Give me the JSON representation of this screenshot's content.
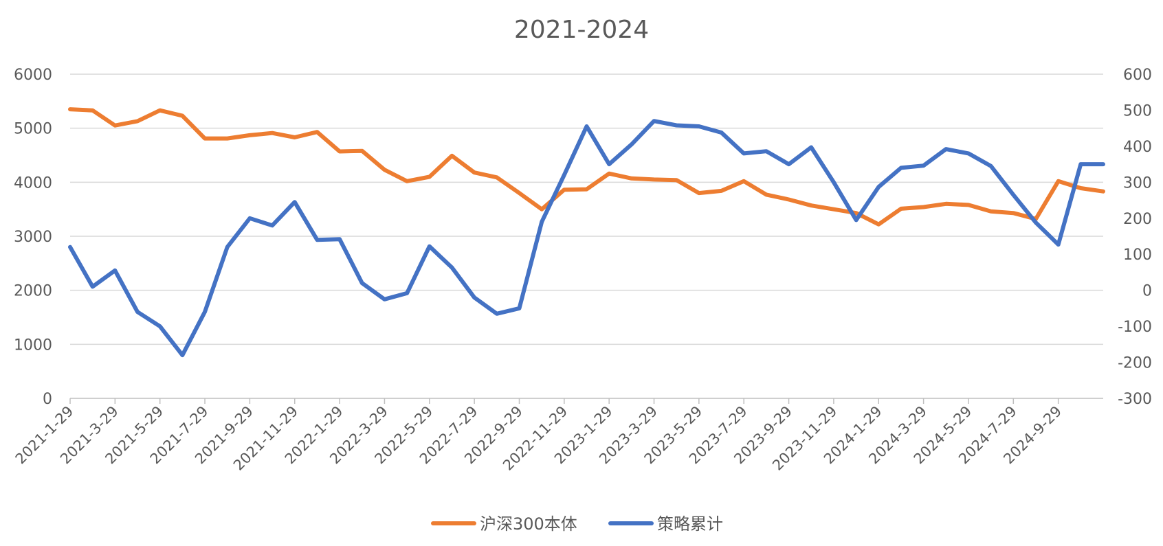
{
  "chart_data": {
    "type": "line",
    "title": "2021-2024",
    "x": [
      "2021-1-29",
      "2021-2-28",
      "2021-3-29",
      "2021-4-29",
      "2021-5-29",
      "2021-6-29",
      "2021-7-29",
      "2021-8-29",
      "2021-9-29",
      "2021-10-29",
      "2021-11-29",
      "2021-12-29",
      "2022-1-29",
      "2022-2-28",
      "2022-3-29",
      "2022-4-29",
      "2022-5-29",
      "2022-6-29",
      "2022-7-29",
      "2022-8-29",
      "2022-9-29",
      "2022-10-29",
      "2022-11-29",
      "2022-12-29",
      "2023-1-29",
      "2023-2-28",
      "2023-3-29",
      "2023-4-29",
      "2023-5-29",
      "2023-6-29",
      "2023-7-29",
      "2023-8-29",
      "2023-9-29",
      "2023-10-29",
      "2023-11-29",
      "2023-12-29",
      "2024-1-29",
      "2024-2-29",
      "2024-3-29",
      "2024-4-29",
      "2024-5-29",
      "2024-6-29",
      "2024-7-29",
      "2024-8-29",
      "2024-9-29",
      "2024-10-29",
      "2024-11-29"
    ],
    "x_tick_labels": [
      "2021-1-29",
      "2021-3-29",
      "2021-5-29",
      "2021-7-29",
      "2021-9-29",
      "2021-11-29",
      "2022-1-29",
      "2022-3-29",
      "2022-5-29",
      "2022-7-29",
      "2022-9-29",
      "2022-11-29",
      "2023-1-29",
      "2023-3-29",
      "2023-5-29",
      "2023-7-29",
      "2023-9-29",
      "2023-11-29",
      "2024-1-29",
      "2024-3-29",
      "2024-5-29",
      "2024-7-29",
      "2024-9-29"
    ],
    "y_left": {
      "lim": [
        0,
        6000
      ],
      "ticks": [
        "0",
        "1000",
        "2000",
        "3000",
        "4000",
        "5000",
        "6000"
      ]
    },
    "y_right": {
      "lim": [
        -300,
        600
      ],
      "ticks": [
        "-300",
        "-200",
        "-100",
        "0",
        "100",
        "200",
        "300",
        "400",
        "500",
        "600"
      ]
    },
    "grid": true,
    "legend_position": "bottom",
    "series": [
      {
        "name": "沪深300本体",
        "axis": "left",
        "color": "#ED7D31",
        "values": [
          5350,
          5330,
          5050,
          5130,
          5330,
          5230,
          4810,
          4810,
          4870,
          4910,
          4830,
          4930,
          4570,
          4580,
          4230,
          4020,
          4100,
          4490,
          4180,
          4090,
          3800,
          3500,
          3860,
          3870,
          4160,
          4070,
          4050,
          4040,
          3800,
          3840,
          4020,
          3770,
          3680,
          3570,
          3500,
          3430,
          3220,
          3510,
          3540,
          3600,
          3580,
          3460,
          3430,
          3320,
          4020,
          3890,
          3830
        ]
      },
      {
        "name": "策略累计",
        "axis": "right",
        "color": "#4472C4",
        "values": [
          120,
          10,
          55,
          -60,
          -100,
          -180,
          -60,
          120,
          200,
          180,
          245,
          140,
          142,
          20,
          -25,
          -8,
          122,
          63,
          -20,
          -65,
          -50,
          190,
          320,
          455,
          350,
          405,
          470,
          458,
          455,
          438,
          380,
          386,
          350,
          397,
          300,
          195,
          287,
          340,
          346,
          392,
          380,
          345,
          265,
          188,
          127,
          350,
          350
        ]
      }
    ]
  }
}
